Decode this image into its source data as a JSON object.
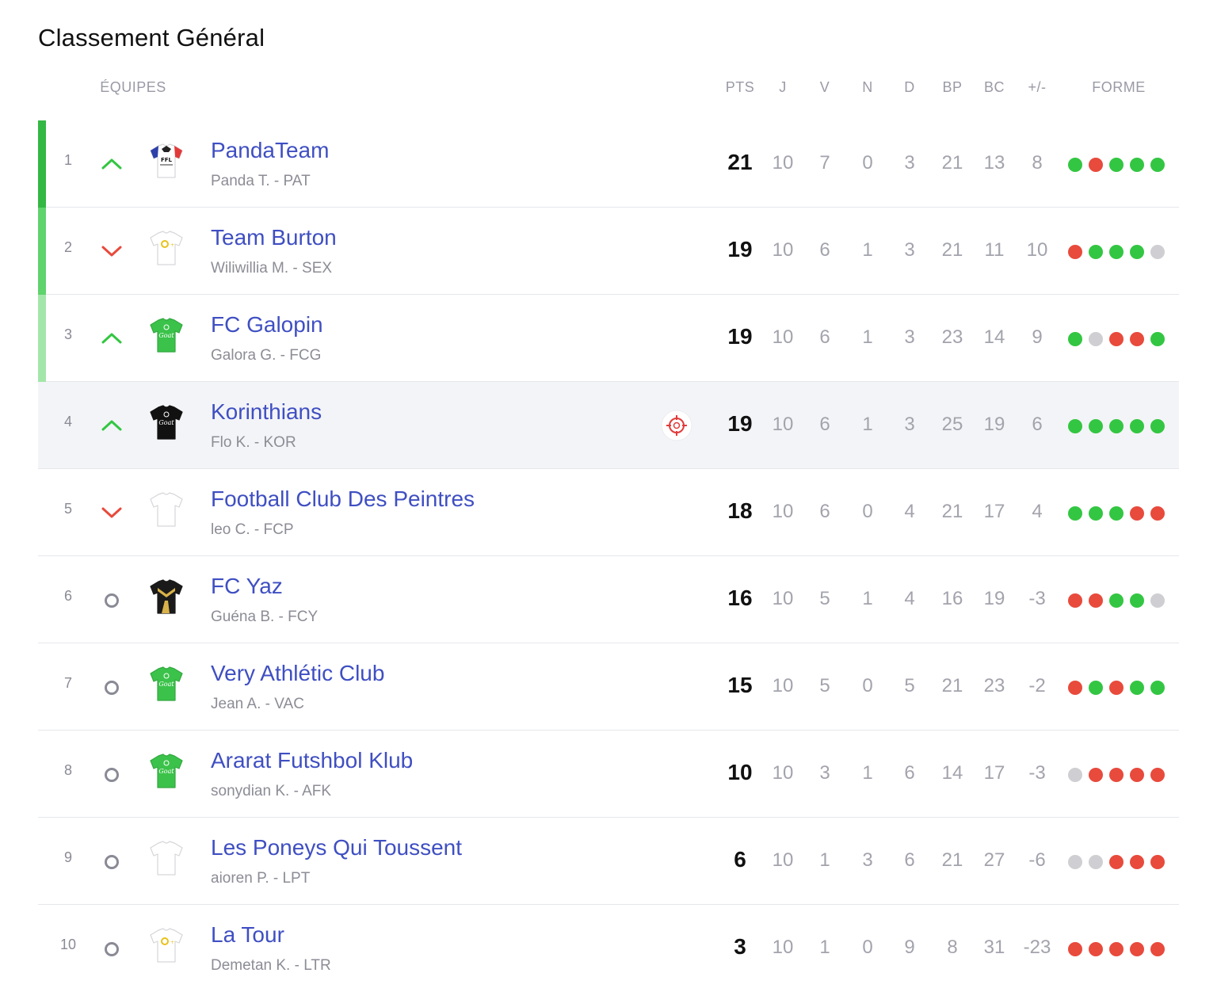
{
  "title": "Classement Général",
  "headers": {
    "teams": "ÉQUIPES",
    "pts": "PTS",
    "j": "J",
    "v": "V",
    "n": "N",
    "d": "D",
    "bp": "BP",
    "bc": "BC",
    "diff": "+/-",
    "forme": "FORME"
  },
  "colors": {
    "rank1": "#33b843",
    "rank2": "#5fd36c",
    "rank3": "#a3e6aa",
    "win": "#33c642",
    "loss": "#e84a3c",
    "draw": "#cfcfd3",
    "team_link": "#3f4fc2"
  },
  "rows": [
    {
      "rank": "1",
      "trend": "up",
      "jersey": "ffl",
      "name": "PandaTeam",
      "sub": "Panda T. - PAT",
      "pts": "21",
      "j": "10",
      "v": "7",
      "n": "0",
      "d": "3",
      "bp": "21",
      "bc": "13",
      "diff": "8",
      "form": [
        "W",
        "L",
        "W",
        "W",
        "W"
      ]
    },
    {
      "rank": "2",
      "trend": "down",
      "jersey": "white-logo",
      "name": "Team Burton",
      "sub": "Wiliwillia M. - SEX",
      "pts": "19",
      "j": "10",
      "v": "6",
      "n": "1",
      "d": "3",
      "bp": "21",
      "bc": "11",
      "diff": "10",
      "form": [
        "L",
        "W",
        "W",
        "W",
        "D"
      ]
    },
    {
      "rank": "3",
      "trend": "up",
      "jersey": "green",
      "name": "FC Galopin",
      "sub": "Galora G. - FCG",
      "pts": "19",
      "j": "10",
      "v": "6",
      "n": "1",
      "d": "3",
      "bp": "23",
      "bc": "14",
      "diff": "9",
      "form": [
        "W",
        "D",
        "L",
        "L",
        "W"
      ]
    },
    {
      "rank": "4",
      "trend": "up",
      "jersey": "black",
      "name": "Korinthians",
      "sub": "Flo K. - KOR",
      "pts": "19",
      "j": "10",
      "v": "6",
      "n": "1",
      "d": "3",
      "bp": "25",
      "bc": "19",
      "diff": "6",
      "form": [
        "W",
        "W",
        "W",
        "W",
        "W"
      ],
      "highlight": true
    },
    {
      "rank": "5",
      "trend": "down",
      "jersey": "white",
      "name": "Football Club Des Peintres",
      "sub": "leo C. - FCP",
      "pts": "18",
      "j": "10",
      "v": "6",
      "n": "0",
      "d": "4",
      "bp": "21",
      "bc": "17",
      "diff": "4",
      "form": [
        "W",
        "W",
        "W",
        "L",
        "L"
      ]
    },
    {
      "rank": "6",
      "trend": "same",
      "jersey": "black-gold",
      "name": "FC Yaz",
      "sub": "Guéna B. - FCY",
      "pts": "16",
      "j": "10",
      "v": "5",
      "n": "1",
      "d": "4",
      "bp": "16",
      "bc": "19",
      "diff": "-3",
      "form": [
        "L",
        "L",
        "W",
        "W",
        "D"
      ]
    },
    {
      "rank": "7",
      "trend": "same",
      "jersey": "green",
      "name": "Very Athlétic Club",
      "sub": "Jean A. - VAC",
      "pts": "15",
      "j": "10",
      "v": "5",
      "n": "0",
      "d": "5",
      "bp": "21",
      "bc": "23",
      "diff": "-2",
      "form": [
        "L",
        "W",
        "L",
        "W",
        "W"
      ]
    },
    {
      "rank": "8",
      "trend": "same",
      "jersey": "green",
      "name": "Ararat Futshbol Klub",
      "sub": "sonydian K. - AFK",
      "pts": "10",
      "j": "10",
      "v": "3",
      "n": "1",
      "d": "6",
      "bp": "14",
      "bc": "17",
      "diff": "-3",
      "form": [
        "D",
        "L",
        "L",
        "L",
        "L"
      ]
    },
    {
      "rank": "9",
      "trend": "same",
      "jersey": "white",
      "name": "Les Poneys Qui Toussent",
      "sub": "aioren P. - LPT",
      "pts": "6",
      "j": "10",
      "v": "1",
      "n": "3",
      "d": "6",
      "bp": "21",
      "bc": "27",
      "diff": "-6",
      "form": [
        "D",
        "D",
        "L",
        "L",
        "L"
      ]
    },
    {
      "rank": "10",
      "trend": "same",
      "jersey": "white-logo",
      "name": "La Tour",
      "sub": "Demetan K. - LTR",
      "pts": "3",
      "j": "10",
      "v": "1",
      "n": "0",
      "d": "9",
      "bp": "8",
      "bc": "31",
      "diff": "-23",
      "form": [
        "L",
        "L",
        "L",
        "L",
        "L"
      ]
    }
  ]
}
